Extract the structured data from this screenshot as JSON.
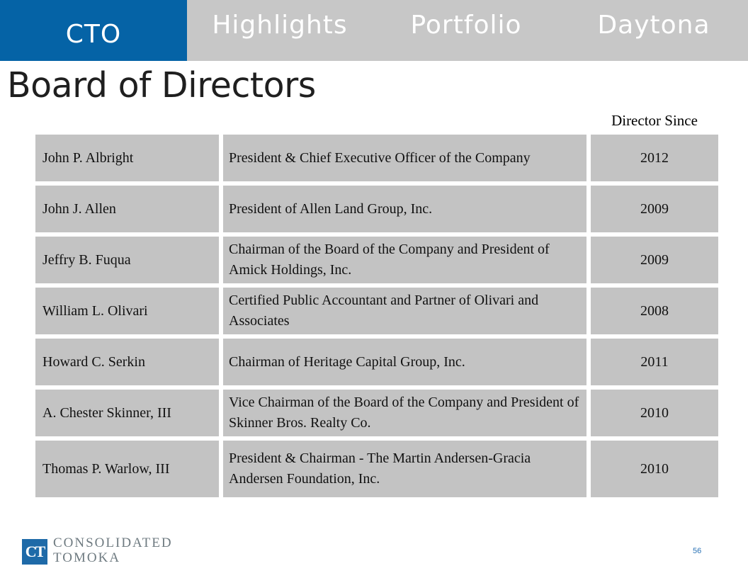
{
  "nav": {
    "tabs": [
      {
        "label": "CTO",
        "active": true
      },
      {
        "label": "Highlights",
        "active": false
      },
      {
        "label": "Portfolio",
        "active": false
      },
      {
        "label": "Daytona",
        "active": false
      }
    ]
  },
  "page_title": "Board of Directors",
  "table": {
    "column_header": "Director Since",
    "rows": [
      {
        "name": "John P. Albright",
        "role": "President & Chief Executive Officer of the Company",
        "since": "2012"
      },
      {
        "name": "John J. Allen",
        "role": "President of Allen Land Group, Inc.",
        "since": "2009"
      },
      {
        "name": "Jeffry B. Fuqua",
        "role": "Chairman of the Board of the Company and President of Amick Holdings, Inc.",
        "since": "2009"
      },
      {
        "name": "William L. Olivari",
        "role": "Certified Public Accountant and Partner of Olivari and Associates",
        "since": "2008"
      },
      {
        "name": "Howard C. Serkin",
        "role": "Chairman of Heritage Capital Group, Inc.",
        "since": "2011"
      },
      {
        "name": "A. Chester Skinner, III",
        "role": "Vice Chairman of the Board of the Company and President of Skinner Bros. Realty Co.",
        "since": "2010"
      },
      {
        "name": "Thomas P. Warlow, III",
        "role": "President & Chairman - The Martin Andersen-Gracia Andersen Foundation, Inc.",
        "since": "2010"
      }
    ]
  },
  "footer": {
    "logo_mark": "CT",
    "logo_line1": "CONSOLIDATED",
    "logo_line2": "TOMOKA",
    "page_number": "56"
  },
  "colors": {
    "nav_active": "#0563a6",
    "nav_bar": "#c7c7c7",
    "cell_bg": "#c3c3c3",
    "logo_blue": "#1e6aa8"
  }
}
